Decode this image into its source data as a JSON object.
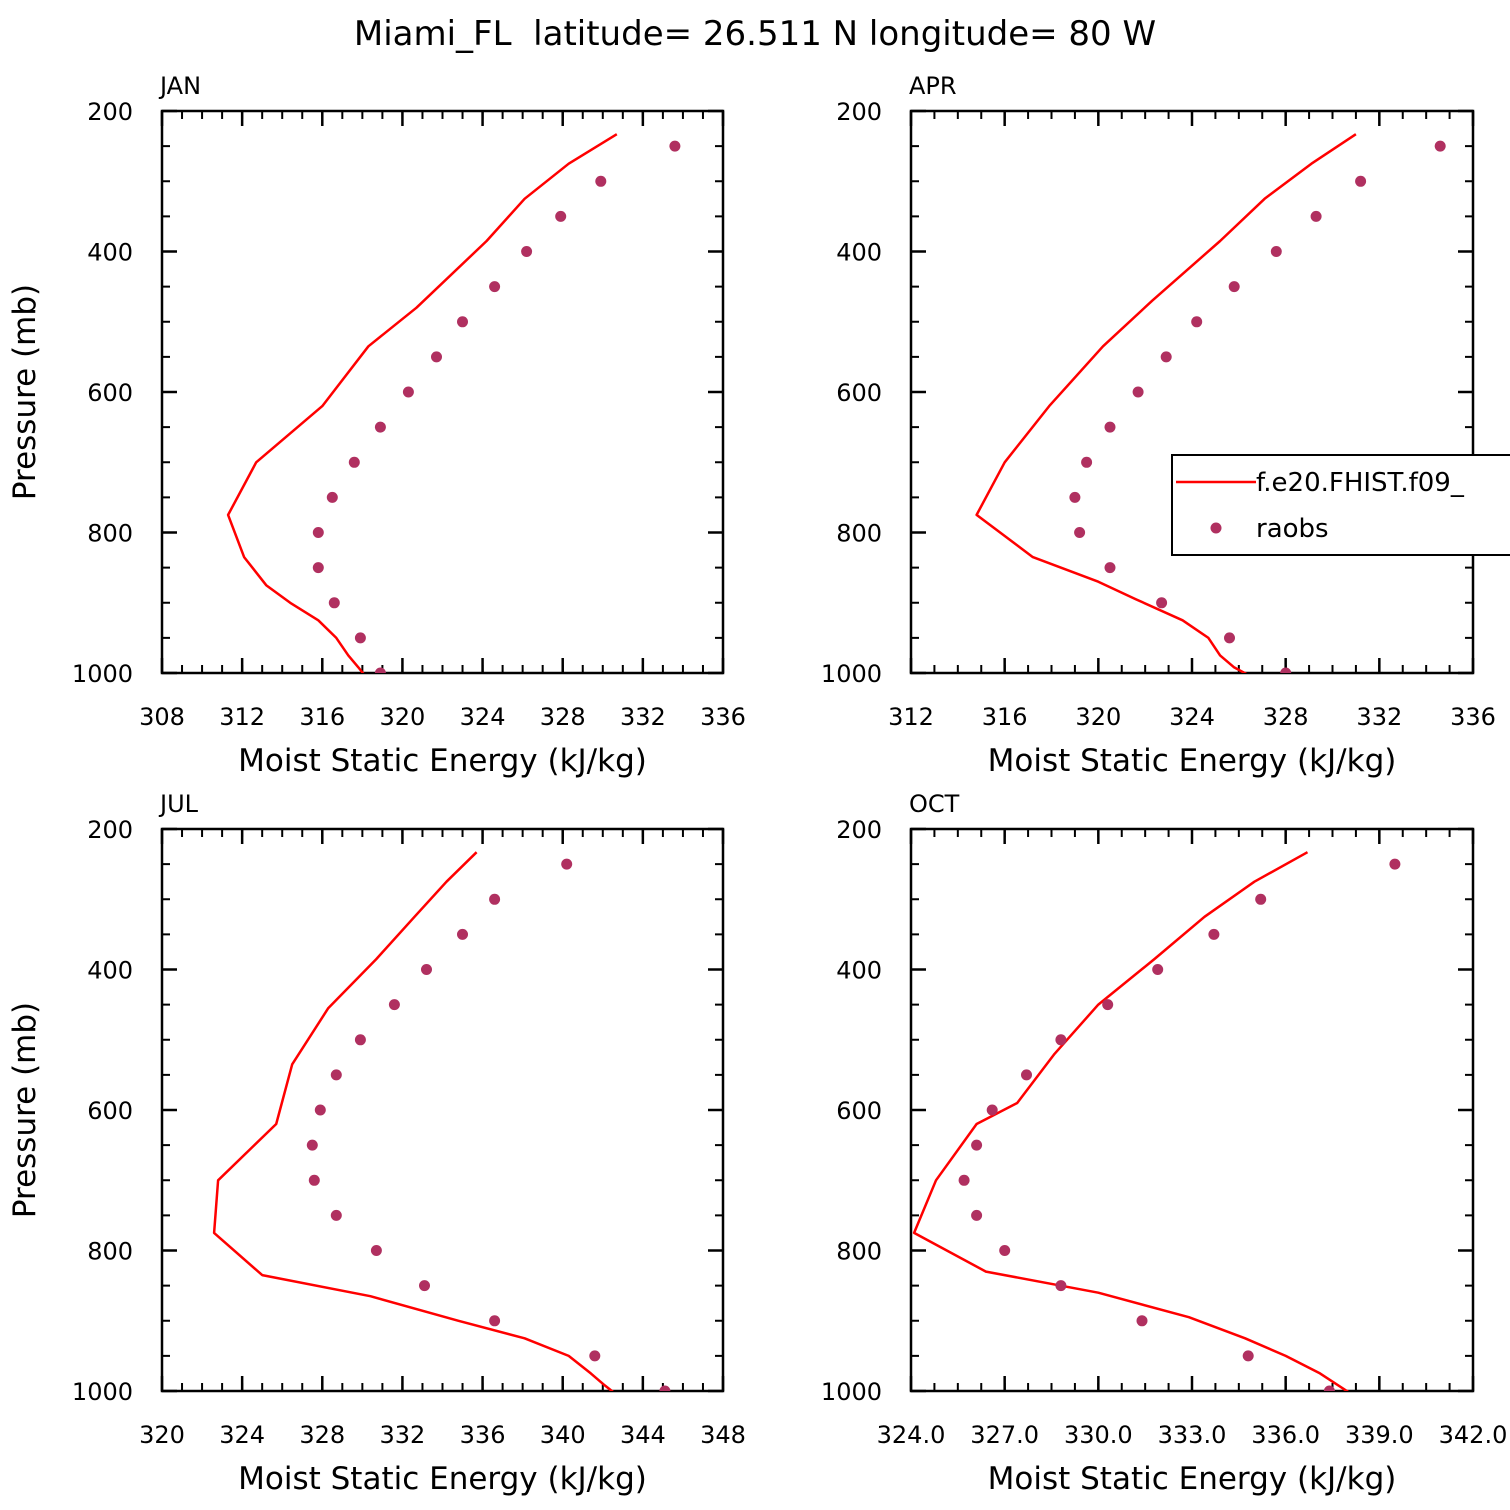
{
  "figure": {
    "title": "Miami_FL  latitude= 26.511 N longitude= 80 W"
  },
  "colors": {
    "model_line": "#ff0000",
    "raobs_marker": "#b03060",
    "axes": "#000000",
    "background": "#ffffff"
  },
  "legend": {
    "panel": "APR",
    "entries": [
      {
        "label": "f.e20.FHIST.f09_",
        "style": "line"
      },
      {
        "label": "raobs",
        "style": "marker"
      }
    ]
  },
  "chart_data": [
    {
      "type": "line",
      "title": "JAN",
      "xlabel": "Moist Static Energy (kJ/kg)",
      "ylabel": "Pressure (mb)",
      "xlim": [
        308,
        336
      ],
      "ylim": [
        1000,
        200
      ],
      "xticks": [
        308,
        312,
        316,
        320,
        324,
        328,
        332,
        336
      ],
      "xtick_labels": [
        "308",
        "312",
        "316",
        "320",
        "324",
        "328",
        "332",
        "336"
      ],
      "yticks": [
        200,
        400,
        600,
        800,
        1000
      ],
      "ytick_labels": [
        "200",
        "400",
        "600",
        "800",
        "1000"
      ],
      "series": [
        {
          "name": "f.e20.FHIST.f09_",
          "kind": "line",
          "x": [
            330.7,
            328.3,
            326.1,
            324.2,
            320.7,
            318.3,
            316.0,
            312.7,
            311.3,
            312.1,
            313.2,
            314.4,
            315.8,
            316.7,
            317.3,
            317.8,
            318.3
          ],
          "y": [
            233,
            275,
            325,
            385,
            480,
            535,
            620,
            700,
            775,
            835,
            875,
            900,
            925,
            950,
            975,
            992,
            1010
          ]
        },
        {
          "name": "raobs",
          "kind": "scatter",
          "x": [
            333.6,
            329.9,
            327.9,
            326.2,
            324.6,
            323.0,
            321.7,
            320.3,
            318.9,
            317.6,
            316.5,
            315.8,
            315.8,
            316.6,
            317.9,
            318.9
          ],
          "y": [
            250,
            300,
            350,
            400,
            450,
            500,
            550,
            600,
            650,
            700,
            750,
            800,
            850,
            900,
            950,
            1000
          ]
        }
      ]
    },
    {
      "type": "line",
      "title": "APR",
      "xlabel": "Moist Static Energy (kJ/kg)",
      "ylabel": "",
      "xlim": [
        312,
        336
      ],
      "ylim": [
        1000,
        200
      ],
      "xticks": [
        312,
        316,
        320,
        324,
        328,
        332,
        336
      ],
      "xtick_labels": [
        "312",
        "316",
        "320",
        "324",
        "328",
        "332",
        "336"
      ],
      "yticks": [
        200,
        400,
        600,
        800,
        1000
      ],
      "ytick_labels": [
        "200",
        "400",
        "600",
        "800",
        "1000"
      ],
      "series": [
        {
          "name": "f.e20.FHIST.f09_",
          "kind": "line",
          "x": [
            331.0,
            329.1,
            327.1,
            325.2,
            322.3,
            320.2,
            317.9,
            316.0,
            314.8,
            317.2,
            320.0,
            321.6,
            323.6,
            324.7,
            325.2,
            325.8,
            326.8
          ],
          "y": [
            233,
            275,
            325,
            385,
            470,
            535,
            620,
            700,
            775,
            835,
            870,
            895,
            925,
            950,
            975,
            992,
            1010
          ]
        },
        {
          "name": "raobs",
          "kind": "scatter",
          "x": [
            334.6,
            331.2,
            329.3,
            327.6,
            325.8,
            324.2,
            322.9,
            321.7,
            320.5,
            319.5,
            319.0,
            319.2,
            320.5,
            322.7,
            325.6,
            328.0
          ],
          "y": [
            250,
            300,
            350,
            400,
            450,
            500,
            550,
            600,
            650,
            700,
            750,
            800,
            850,
            900,
            950,
            1000
          ]
        }
      ]
    },
    {
      "type": "line",
      "title": "JUL",
      "xlabel": "Moist Static Energy (kJ/kg)",
      "ylabel": "Pressure (mb)",
      "xlim": [
        320,
        348
      ],
      "ylim": [
        1000,
        200
      ],
      "xticks": [
        320,
        324,
        328,
        332,
        336,
        340,
        344,
        348
      ],
      "xtick_labels": [
        "320",
        "324",
        "328",
        "332",
        "336",
        "340",
        "344",
        "348"
      ],
      "yticks": [
        200,
        400,
        600,
        800,
        1000
      ],
      "ytick_labels": [
        "200",
        "400",
        "600",
        "800",
        "1000"
      ],
      "series": [
        {
          "name": "f.e20.FHIST.f09_",
          "kind": "line",
          "x": [
            335.7,
            334.2,
            332.6,
            330.7,
            328.3,
            326.5,
            325.7,
            322.8,
            322.6,
            325.0,
            330.4,
            334.8,
            338.1,
            340.3,
            341.4,
            342.1,
            342.9
          ],
          "y": [
            233,
            275,
            325,
            385,
            455,
            535,
            620,
            700,
            775,
            835,
            865,
            900,
            925,
            950,
            975,
            992,
            1010
          ]
        },
        {
          "name": "raobs",
          "kind": "scatter",
          "x": [
            340.2,
            336.6,
            335.0,
            333.2,
            331.6,
            329.9,
            328.7,
            327.9,
            327.5,
            327.6,
            328.7,
            330.7,
            333.1,
            336.6,
            341.6,
            345.1
          ],
          "y": [
            250,
            300,
            350,
            400,
            450,
            500,
            550,
            600,
            650,
            700,
            750,
            800,
            850,
            900,
            950,
            1000
          ]
        }
      ]
    },
    {
      "type": "line",
      "title": "OCT",
      "xlabel": "Moist Static Energy (kJ/kg)",
      "ylabel": "",
      "xlim": [
        324,
        342
      ],
      "ylim": [
        1000,
        200
      ],
      "xticks": [
        324,
        327,
        330,
        333,
        336,
        339,
        342
      ],
      "xtick_labels": [
        "324.0",
        "327.0",
        "330.0",
        "333.0",
        "336.0",
        "339.0",
        "342.0"
      ],
      "yticks": [
        200,
        400,
        600,
        800,
        1000
      ],
      "ytick_labels": [
        "200",
        "400",
        "600",
        "800",
        "1000"
      ],
      "series": [
        {
          "name": "f.e20.FHIST.f09_",
          "kind": "line",
          "x": [
            336.7,
            335.0,
            333.4,
            331.8,
            330.0,
            328.6,
            327.4,
            326.1,
            324.8,
            324.1,
            326.4,
            330.0,
            332.9,
            334.7,
            336.0,
            337.1,
            338.3
          ],
          "y": [
            233,
            275,
            325,
            385,
            450,
            520,
            590,
            620,
            700,
            775,
            830,
            860,
            895,
            925,
            950,
            975,
            1010
          ]
        },
        {
          "name": "raobs",
          "kind": "scatter",
          "x": [
            339.5,
            335.2,
            333.7,
            331.9,
            330.3,
            328.8,
            327.7,
            326.6,
            326.1,
            325.7,
            326.1,
            327.0,
            328.8,
            331.4,
            334.8,
            337.4
          ],
          "y": [
            250,
            300,
            350,
            400,
            450,
            500,
            550,
            600,
            650,
            700,
            750,
            800,
            850,
            900,
            950,
            1000
          ]
        }
      ]
    }
  ]
}
